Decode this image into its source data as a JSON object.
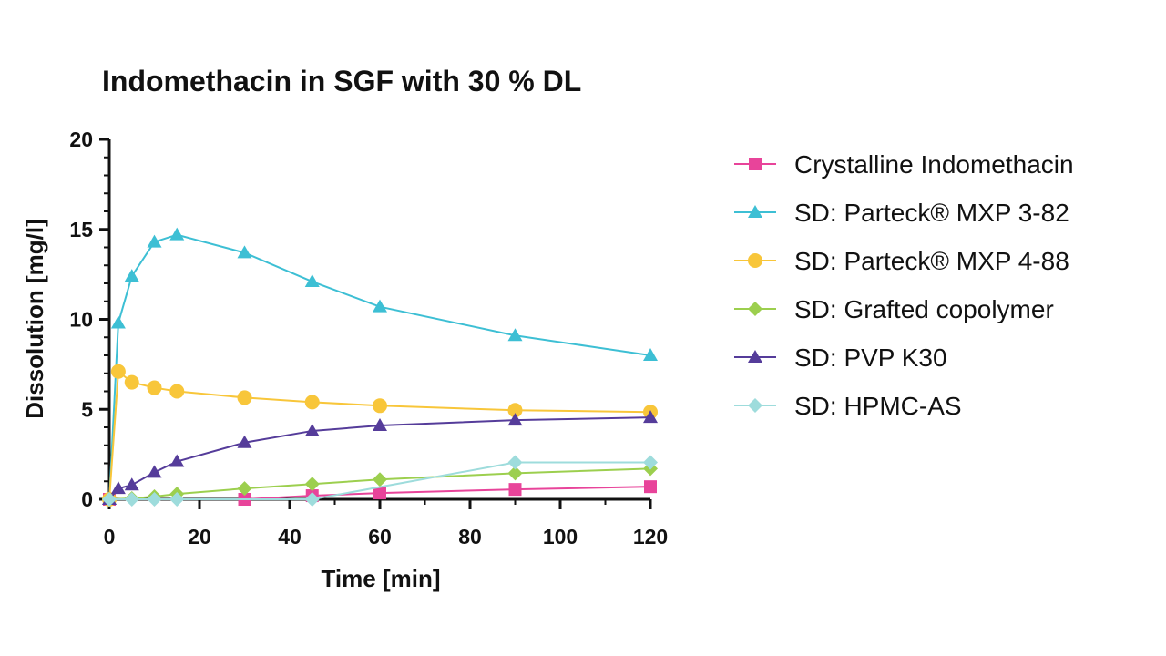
{
  "chart_data": {
    "type": "line",
    "title": "Indomethacin in SGF with 30 % DL",
    "xlabel": "Time [min]",
    "ylabel": "Dissolution [mg/l]",
    "xlim": [
      0,
      120
    ],
    "ylim": [
      0,
      20
    ],
    "xticks": [
      0,
      20,
      40,
      60,
      80,
      100,
      120
    ],
    "yticks": [
      0,
      5,
      10,
      15,
      20
    ],
    "grid": false,
    "legend_position": "right",
    "series": [
      {
        "name": "Crystalline Indomethacin",
        "color": "#e8449a",
        "marker": "square",
        "x": [
          0,
          30,
          45,
          60,
          90,
          120
        ],
        "y": [
          0,
          0,
          0.2,
          0.35,
          0.55,
          0.7
        ]
      },
      {
        "name": "SD: Parteck® MXP 3-82",
        "color": "#3dbfd4",
        "marker": "triangle",
        "x": [
          0,
          2,
          5,
          10,
          15,
          30,
          45,
          60,
          90,
          120
        ],
        "y": [
          0,
          9.8,
          12.4,
          14.3,
          14.7,
          13.7,
          12.1,
          10.7,
          9.1,
          8.0
        ]
      },
      {
        "name": "SD: Parteck® MXP 4-88",
        "color": "#f8c63a",
        "marker": "circle",
        "x": [
          0,
          2,
          5,
          10,
          15,
          30,
          45,
          60,
          90,
          120
        ],
        "y": [
          0,
          7.1,
          6.5,
          6.2,
          6.0,
          5.65,
          5.4,
          5.2,
          4.95,
          4.85
        ]
      },
      {
        "name": "SD: Grafted copolymer",
        "color": "#9ccf4e",
        "marker": "diamond",
        "x": [
          0,
          5,
          10,
          15,
          30,
          45,
          60,
          90,
          120
        ],
        "y": [
          0,
          0.05,
          0.15,
          0.3,
          0.6,
          0.85,
          1.1,
          1.45,
          1.7
        ]
      },
      {
        "name": "SD: PVP K30",
        "color": "#553c9a",
        "marker": "triangle",
        "x": [
          0,
          2,
          5,
          10,
          15,
          30,
          45,
          60,
          90,
          120
        ],
        "y": [
          0,
          0.6,
          0.8,
          1.5,
          2.1,
          3.15,
          3.8,
          4.1,
          4.4,
          4.55
        ]
      },
      {
        "name": "SD: HPMC-AS",
        "color": "#9edcdc",
        "marker": "diamond",
        "x": [
          0,
          5,
          10,
          15,
          45,
          90,
          120
        ],
        "y": [
          0,
          0,
          0,
          0,
          0,
          2.05,
          2.05
        ]
      }
    ]
  }
}
